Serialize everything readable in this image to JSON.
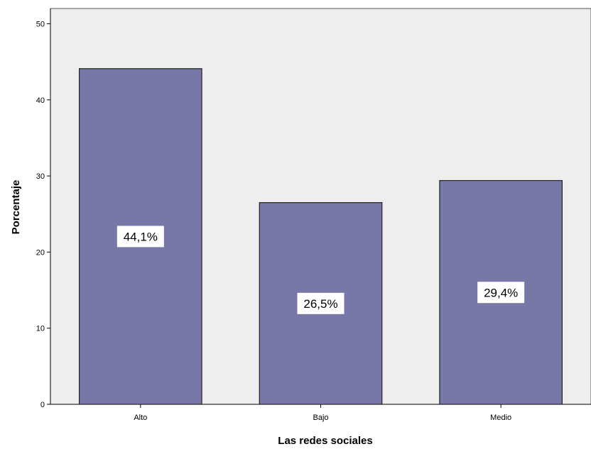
{
  "chart_data": {
    "type": "bar",
    "categories": [
      "Alto",
      "Bajo",
      "Medio"
    ],
    "values": [
      44.1,
      26.5,
      29.4
    ],
    "data_labels": [
      "44,1%",
      "26,5%",
      "29,4%"
    ],
    "yticks": [
      "0",
      "10",
      "20",
      "30",
      "40",
      "50"
    ],
    "xlabel": "Las redes sociales",
    "ylabel": "Porcentaje",
    "ylim": [
      0,
      52
    ],
    "grid": false,
    "colors": {
      "plot_background": "#eeeeee",
      "bar_fill": "#7878a8",
      "bar_stroke": "#222222",
      "label_box": "#ffffff"
    }
  }
}
